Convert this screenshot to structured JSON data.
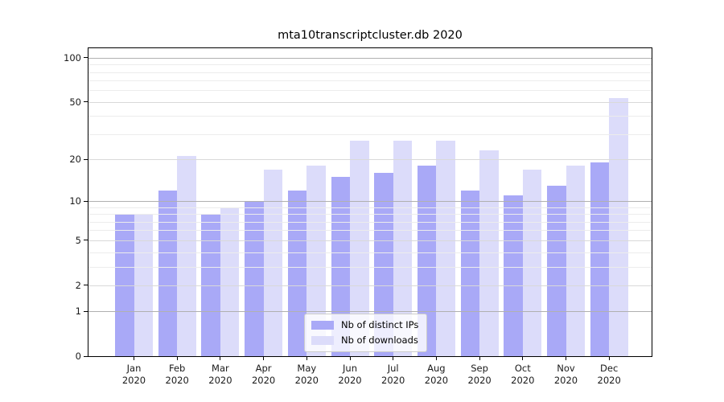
{
  "chart_data": {
    "type": "bar",
    "title": "mta10transcriptcluster.db 2020",
    "categories": [
      "Jan",
      "Feb",
      "Mar",
      "Apr",
      "May",
      "Jun",
      "Jul",
      "Aug",
      "Sep",
      "Oct",
      "Nov",
      "Dec"
    ],
    "x_year_label": "2020",
    "series": [
      {
        "name": "Nb of distinct IPs",
        "color": "#a9a9f7",
        "values": [
          8,
          12,
          8,
          10,
          12,
          15,
          16,
          18,
          12,
          11,
          13,
          19
        ]
      },
      {
        "name": "Nb of downloads",
        "color": "#dcdcfa",
        "values": [
          8,
          21,
          9,
          17,
          18,
          27,
          27,
          27,
          23,
          17,
          18,
          53
        ]
      }
    ],
    "yscale": "log1p",
    "ylim": [
      0,
      115
    ],
    "y_tick_labels": [
      0,
      1,
      2,
      5,
      10,
      20,
      50,
      100
    ],
    "y_major_gridlines": [
      1,
      10,
      100
    ],
    "y_mid_gridlines": [
      2,
      5,
      20,
      50
    ],
    "y_minor_gridlines": [
      3,
      4,
      6,
      7,
      8,
      9,
      30,
      40,
      60,
      70,
      80,
      90
    ],
    "grid": true,
    "legend_position": "bottom-center",
    "background": "#ffffff"
  }
}
